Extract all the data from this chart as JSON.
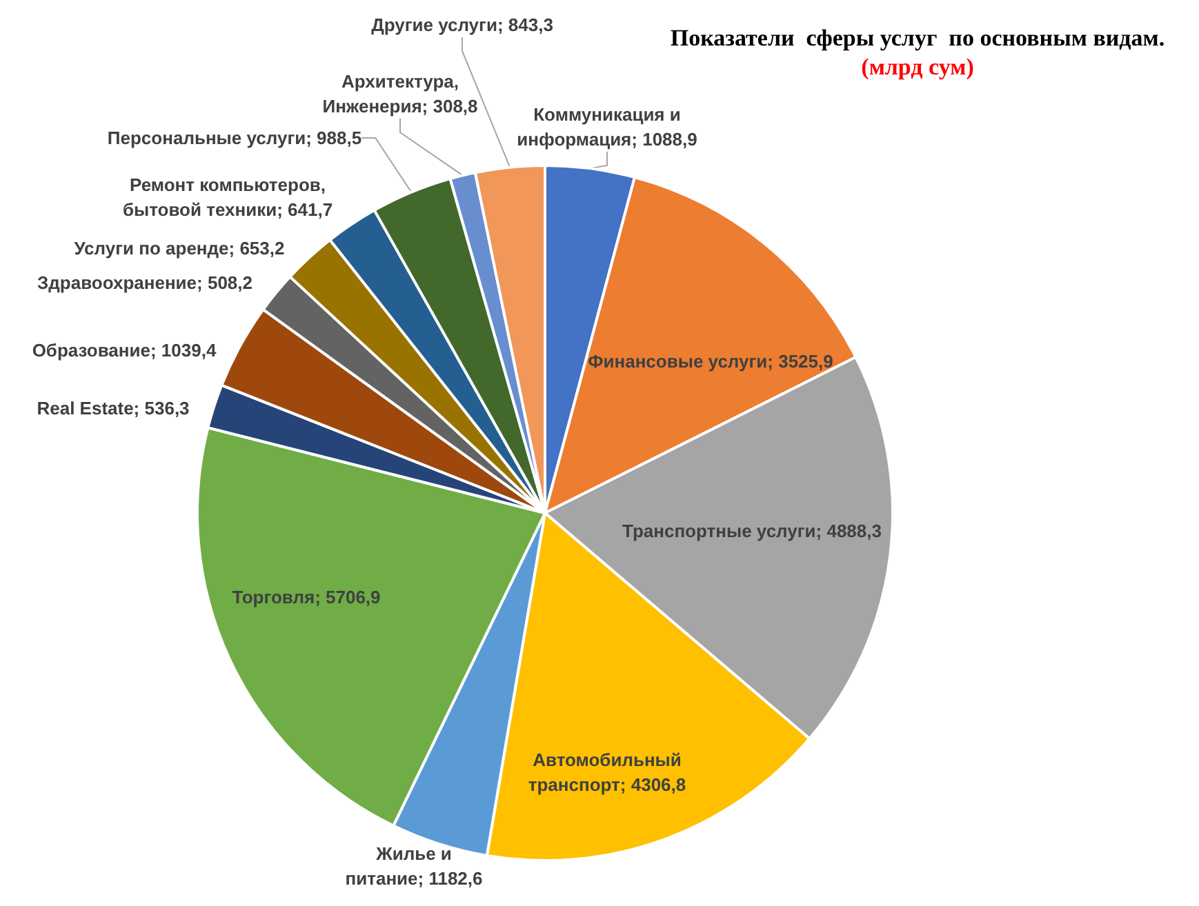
{
  "chart_data": {
    "type": "pie",
    "title": "Показатели  сферы услуг  по основным видам.",
    "subtitle": "(млрд сум)",
    "categories": [
      "Коммуникация и информация",
      "Финансовые услуги",
      "Транспортные услуги",
      "Автомобильный транспорт",
      "Жилье и питание",
      "Торговля",
      "Real Estate",
      "Образование",
      "Здравоохранение",
      "Услуги по аренде",
      "Ремонт компьютеров, бытовой техники",
      "Персональные услуги",
      "Архитектура, Инженерия",
      "Другие услуги"
    ],
    "values": [
      1088.9,
      3525.9,
      4888.3,
      4306.8,
      1182.6,
      5706.9,
      536.3,
      1039.4,
      508.2,
      653.2,
      641.7,
      988.5,
      308.8,
      843.3
    ],
    "value_labels": [
      "1088,9",
      "3525,9",
      "4888,3",
      "4306,8",
      "1182,6",
      "5706,9",
      "536,3",
      "1039,4",
      "508,2",
      "653,2",
      "641,7",
      "988,5",
      "308,8",
      "843,3"
    ],
    "colors": [
      "#4472c4",
      "#ed7d31",
      "#a5a5a5",
      "#ffc000",
      "#5b9bd5",
      "#70ad47",
      "#264478",
      "#9e480e",
      "#636363",
      "#997300",
      "#255e91",
      "#43682b",
      "#698ed0",
      "#f1975a"
    ],
    "legend": false
  }
}
